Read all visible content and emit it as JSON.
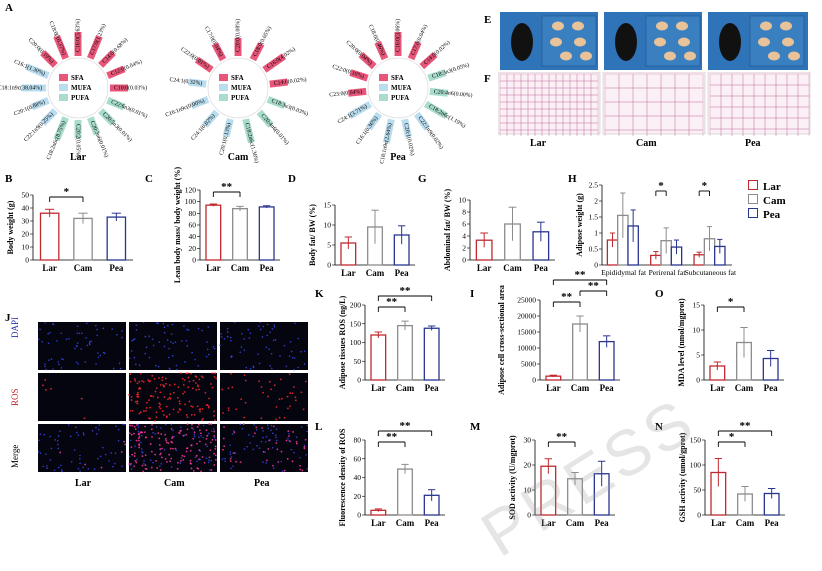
{
  "colors": {
    "lar": "#c0282e",
    "cam": "#8c8c8c",
    "pea": "#2a3590",
    "sfa": "#e8577a",
    "mufa": "#b9dcef",
    "pufa": "#a8dccd"
  },
  "groups": [
    "Lar",
    "Cam",
    "Pea"
  ],
  "legend": {
    "items": [
      "Lar",
      "Cam",
      "Pea"
    ]
  },
  "panelA": {
    "letter": "A",
    "legend": [
      "SFA",
      "MUFA",
      "PUFA"
    ],
    "wheels": [
      {
        "name": "Lar",
        "labels": [
          "C16:0(5.63%)",
          "C17:0(1.23%)",
          "C14:0(0.68%)",
          "C12:0(0.04%)",
          "C10:0(0.03%)",
          "C22:6n3(0.01%)",
          "C20:5n3(0.01%)",
          "C20:3n6(0.01%)",
          "C20:2(0.05%)",
          "C18:2n6c(8.75%)",
          "C22:1n9(0.25%)",
          "C20:1(0.88%)",
          "C18:1n9c(38.04%)",
          "C16:1(1.30%)",
          "C20:0(0.19%)",
          "C18:0(10.37%)"
        ]
      },
      {
        "name": "Cam",
        "labels": [
          "C20:0(0.08%)",
          "C18:0(0.65%)",
          "C16:0(4.02%)",
          "C14:0(0.02%)",
          "C18:3n3(0.03%)",
          "C20:4n6(0.01%)",
          "C18:2n6c(1.36%)",
          "C20:1(0.13%)",
          "C24:1(0.02%)",
          "C16:1n9c(0.00%)",
          "C24:1(0.32%)",
          "C22:0(0.01%)",
          "C17:0(0.04%)"
        ]
      },
      {
        "name": "Pea",
        "labels": [
          "C16:0(3.06%)",
          "C17:0(0.04%)",
          "C14:0(0.02%)",
          "C18:3n3(0.05%)",
          "C20:4n6(0.00%)",
          "C18:2n6c(1.19%)",
          "C22:1n9(0.02%)",
          "C20:1(0.02%)",
          "C18:1n9c(2.64%)",
          "C16:1(0.36%)",
          "C24:1(3.71%)",
          "C23:0(0.04%)",
          "C22:0(0.10%)",
          "C20:0(0.04%)",
          "C18:0(0.46%)"
        ]
      }
    ]
  },
  "panelE": {
    "letter": "E"
  },
  "panelF": {
    "letter": "F",
    "labels": [
      "Lar",
      "Cam",
      "Pea"
    ]
  },
  "panelJ": {
    "letter": "J",
    "rows": [
      "DAPI",
      "ROS",
      "Merge"
    ],
    "cols": [
      "Lar",
      "Cam",
      "Pea"
    ]
  },
  "chart_data": [
    {
      "panel": "B",
      "type": "bar",
      "ylabel": "Body weight (g)",
      "ylim": [
        0,
        50
      ],
      "yticks": [
        0,
        10,
        20,
        30,
        40,
        50
      ],
      "categories": [
        "Lar",
        "Cam",
        "Pea"
      ],
      "values": [
        36,
        32,
        33
      ],
      "errors": [
        3,
        4,
        3
      ],
      "sig": [
        {
          "from": 0,
          "to": 1,
          "label": "*"
        }
      ]
    },
    {
      "panel": "C",
      "type": "bar",
      "ylabel": "Lean body mass/ body weight (%)",
      "ylim": [
        0,
        120
      ],
      "yticks": [
        0,
        20,
        40,
        60,
        80,
        100,
        120
      ],
      "categories": [
        "Lar",
        "Cam",
        "Pea"
      ],
      "values": [
        94,
        88,
        91
      ],
      "errors": [
        2,
        4,
        2
      ],
      "sig": [
        {
          "from": 0,
          "to": 1,
          "label": "**"
        }
      ]
    },
    {
      "panel": "D",
      "type": "bar",
      "ylabel": "Body fat/ BW (%)",
      "ylim": [
        0,
        15
      ],
      "yticks": [
        0,
        5,
        10,
        15
      ],
      "categories": [
        "Lar",
        "Cam",
        "Pea"
      ],
      "values": [
        5.5,
        9.5,
        7.5
      ],
      "errors": [
        1.5,
        4.2,
        2.3
      ],
      "sig": []
    },
    {
      "panel": "G",
      "type": "bar",
      "ylabel": "Abdominal fat/ BW (%)",
      "ylim": [
        0,
        10
      ],
      "yticks": [
        0,
        2,
        4,
        6,
        8,
        10
      ],
      "categories": [
        "Lar",
        "Cam",
        "Pea"
      ],
      "values": [
        3.3,
        6,
        4.7
      ],
      "errors": [
        1.2,
        2.8,
        1.6
      ],
      "sig": []
    },
    {
      "panel": "H",
      "type": "bar",
      "ylabel": "Adipose weight (g)",
      "ylim": [
        0,
        2.5
      ],
      "yticks": [
        0,
        0.5,
        1.0,
        1.5,
        2.0,
        2.5
      ],
      "categories": [
        "Epididymal fat",
        "Perirenal fat",
        "Subcutaneous fat"
      ],
      "series": [
        {
          "name": "Lar",
          "values": [
            0.78,
            0.3,
            0.32
          ],
          "errors": [
            0.22,
            0.12,
            0.08
          ]
        },
        {
          "name": "Cam",
          "values": [
            1.55,
            0.76,
            0.82
          ],
          "errors": [
            0.7,
            0.4,
            0.38
          ]
        },
        {
          "name": "Pea",
          "values": [
            1.22,
            0.56,
            0.58
          ],
          "errors": [
            0.5,
            0.22,
            0.22
          ]
        }
      ],
      "sig": [
        {
          "group": 1,
          "from": 0,
          "to": 1,
          "label": "*"
        },
        {
          "group": 2,
          "from": 0,
          "to": 1,
          "label": "*"
        }
      ]
    },
    {
      "panel": "K",
      "type": "bar",
      "ylabel": "Adipose tissues ROS (ng/L)",
      "ylim": [
        0,
        200
      ],
      "yticks": [
        0,
        50,
        100,
        150,
        200
      ],
      "categories": [
        "Lar",
        "Cam",
        "Pea"
      ],
      "values": [
        120,
        145,
        138
      ],
      "errors": [
        8,
        12,
        6
      ],
      "sig": [
        {
          "from": 0,
          "to": 1,
          "label": "**"
        },
        {
          "from": 0,
          "to": 2,
          "label": "**"
        }
      ]
    },
    {
      "panel": "I",
      "type": "bar",
      "ylabel": "Adipose cell cross-sectional area",
      "ylim": [
        0,
        25000
      ],
      "yticks": [
        0,
        5000,
        10000,
        15000,
        20000,
        25000
      ],
      "categories": [
        "Lar",
        "Cam",
        "Pea"
      ],
      "values": [
        1200,
        17500,
        12000
      ],
      "errors": [
        300,
        2500,
        1800
      ],
      "sig": [
        {
          "from": 0,
          "to": 1,
          "label": "**"
        },
        {
          "from": 1,
          "to": 2,
          "label": "**"
        },
        {
          "from": 0,
          "to": 2,
          "label": "**"
        }
      ]
    },
    {
      "panel": "O",
      "type": "bar",
      "ylabel": "MDA level (nmol/mgprot)",
      "ylim": [
        0,
        15
      ],
      "yticks": [
        0,
        5,
        10,
        15
      ],
      "categories": [
        "Lar",
        "Cam",
        "Pea"
      ],
      "values": [
        2.8,
        7.5,
        4.3
      ],
      "errors": [
        0.8,
        3,
        1.6
      ],
      "sig": [
        {
          "from": 0,
          "to": 1,
          "label": "*"
        }
      ]
    },
    {
      "panel": "L",
      "type": "bar",
      "ylabel": "Fluorescence density of ROS",
      "ylim": [
        0,
        80
      ],
      "yticks": [
        0,
        20,
        40,
        60,
        80
      ],
      "categories": [
        "Lar",
        "Cam",
        "Pea"
      ],
      "values": [
        5,
        49,
        21
      ],
      "errors": [
        1.5,
        5,
        6
      ],
      "sig": [
        {
          "from": 0,
          "to": 1,
          "label": "**"
        },
        {
          "from": 0,
          "to": 2,
          "label": "**"
        }
      ]
    },
    {
      "panel": "M",
      "type": "bar",
      "ylabel": "SOD activity (U/mgprot)",
      "ylim": [
        0,
        30
      ],
      "yticks": [
        0,
        10,
        20,
        30
      ],
      "categories": [
        "Lar",
        "Cam",
        "Pea"
      ],
      "values": [
        19.5,
        14.5,
        16.5
      ],
      "errors": [
        3,
        2.5,
        5
      ],
      "sig": [
        {
          "from": 0,
          "to": 1,
          "label": "**"
        }
      ]
    },
    {
      "panel": "N",
      "type": "bar",
      "ylabel": "GSH activity (umol/gprot)",
      "ylim": [
        0,
        150
      ],
      "yticks": [
        0,
        50,
        100,
        150
      ],
      "categories": [
        "Lar",
        "Cam",
        "Pea"
      ],
      "values": [
        85,
        42,
        43
      ],
      "errors": [
        28,
        15,
        10
      ],
      "sig": [
        {
          "from": 0,
          "to": 1,
          "label": "*"
        },
        {
          "from": 0,
          "to": 2,
          "label": "**"
        }
      ]
    }
  ],
  "watermark": "PRESS"
}
